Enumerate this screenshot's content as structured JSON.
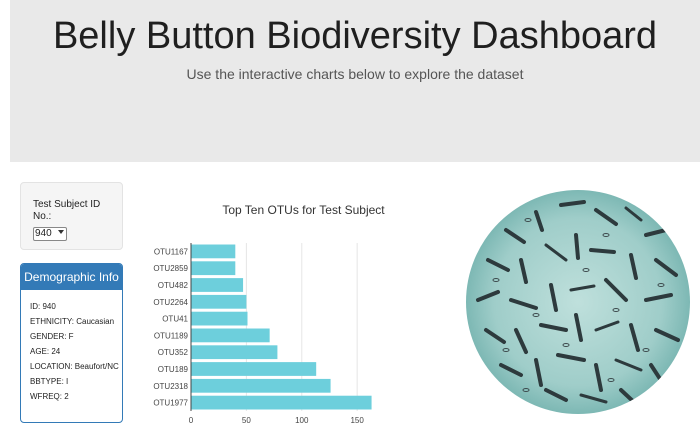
{
  "header": {
    "title": "Belly Button Biodiversity Dashboard",
    "subtitle": "Use the interactive charts below to explore the dataset"
  },
  "selector": {
    "label": "Test Subject ID No.:",
    "selected": "940"
  },
  "demographics": {
    "title": "Demographic Info",
    "rows": [
      "ID: 940",
      "ETHNICITY: Caucasian",
      "GENDER: F",
      "AGE: 24",
      "LOCATION: Beaufort/NC",
      "BBTYPE: I",
      "WFREQ: 2"
    ]
  },
  "chart_data": {
    "type": "bar",
    "orientation": "horizontal",
    "title": "Top Ten OTUs for Test Subject",
    "categories": [
      "OTU1167",
      "OTU2859",
      "OTU482",
      "OTU2264",
      "OTU41",
      "OTU1189",
      "OTU352",
      "OTU189",
      "OTU2318",
      "OTU1977"
    ],
    "values": [
      40,
      40,
      47,
      50,
      51,
      71,
      78,
      113,
      126,
      163
    ],
    "xticks": [
      "0",
      "50",
      "100",
      "150"
    ],
    "xlim": [
      0,
      167
    ],
    "grid": true,
    "bar_color": "#6dcfdc"
  },
  "colors": {
    "jumbotron_bg": "#e9e9e9",
    "panel_primary": "#337ab7",
    "bar": "#6dcfdc"
  }
}
